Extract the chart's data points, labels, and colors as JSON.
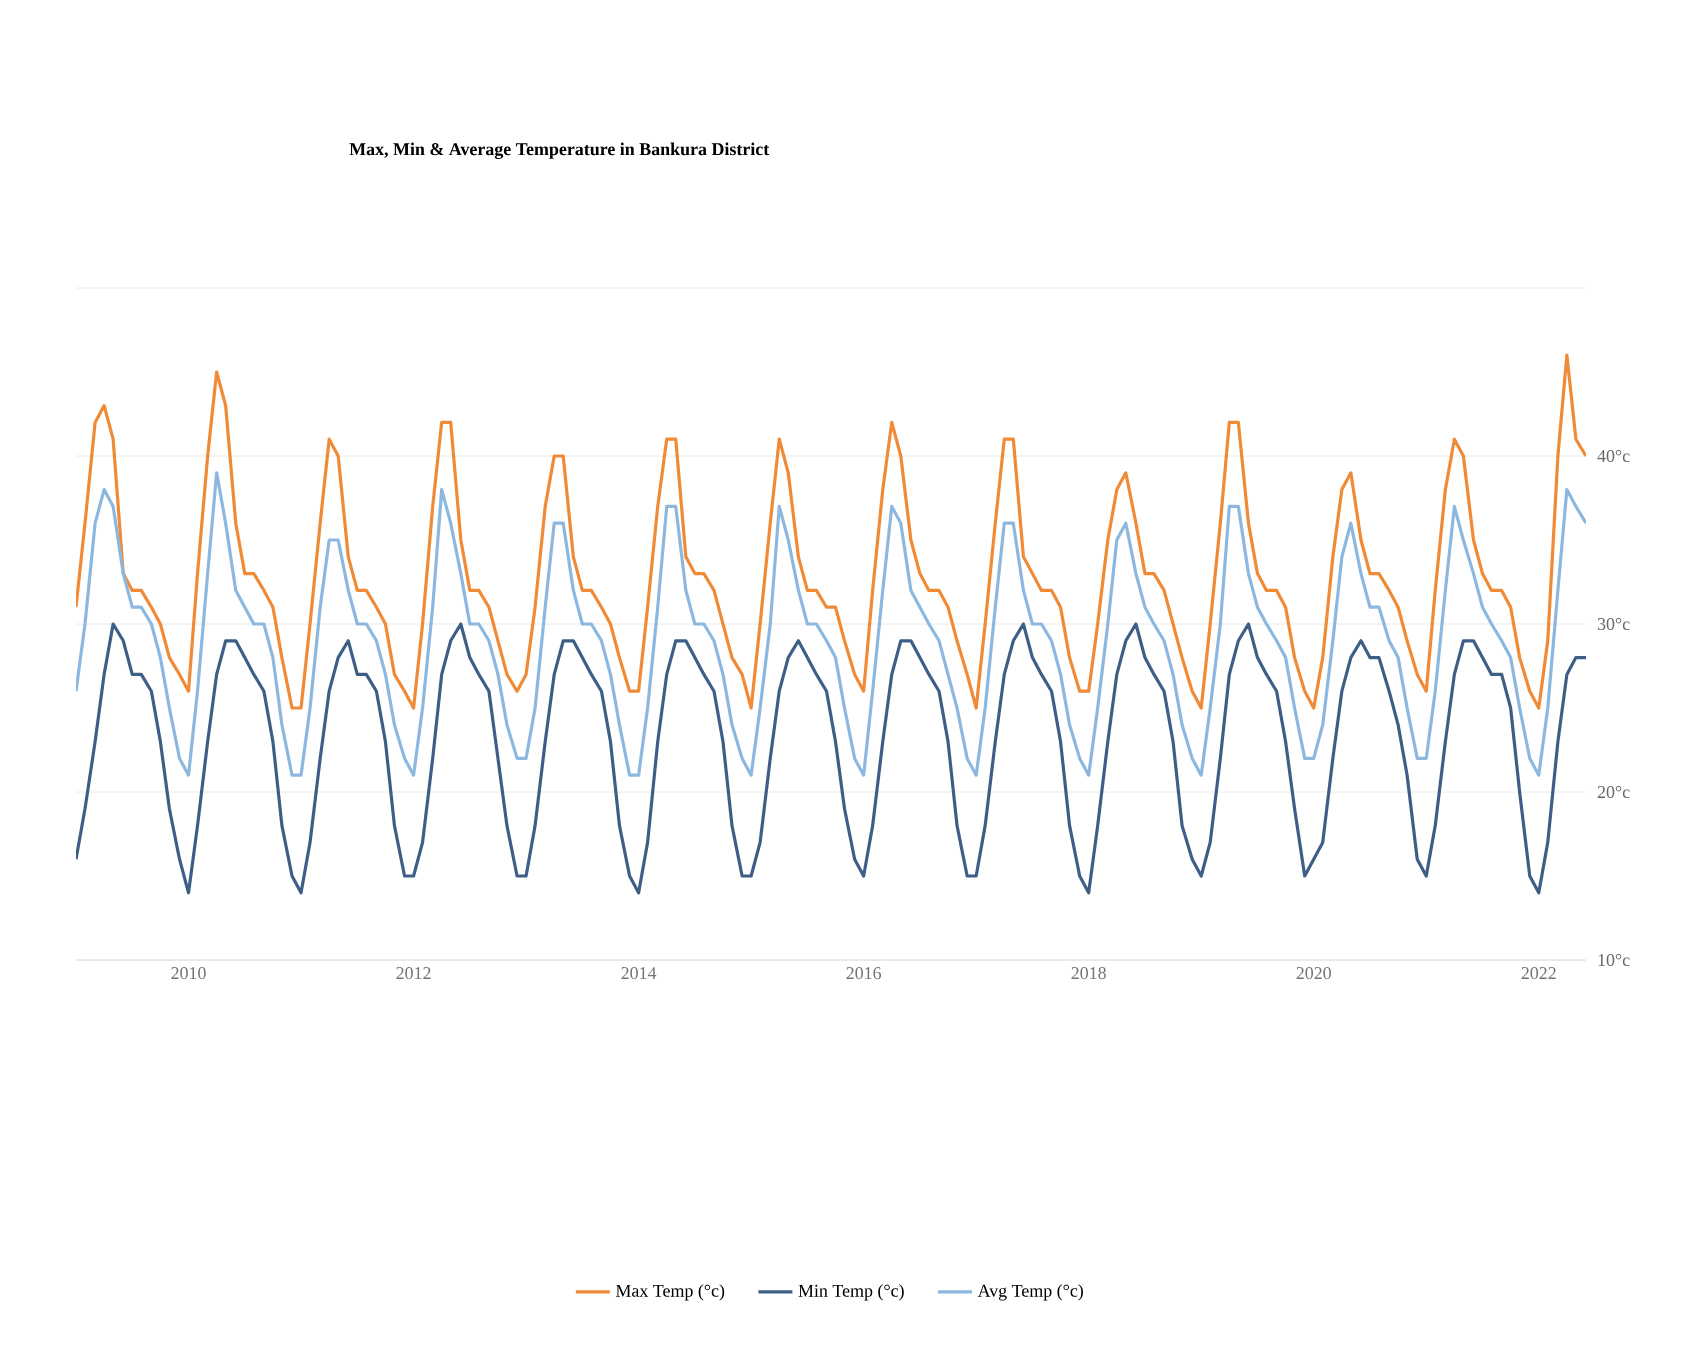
{
  "chart_data": {
    "type": "line",
    "title": "Max, Min & Average Temperature in Bankura District",
    "x": [
      "2009-01",
      "2009-02",
      "2009-03",
      "2009-04",
      "2009-05",
      "2009-06",
      "2009-07",
      "2009-08",
      "2009-09",
      "2009-10",
      "2009-11",
      "2009-12",
      "2010-01",
      "2010-02",
      "2010-03",
      "2010-04",
      "2010-05",
      "2010-06",
      "2010-07",
      "2010-08",
      "2010-09",
      "2010-10",
      "2010-11",
      "2010-12",
      "2011-01",
      "2011-02",
      "2011-03",
      "2011-04",
      "2011-05",
      "2011-06",
      "2011-07",
      "2011-08",
      "2011-09",
      "2011-10",
      "2011-11",
      "2011-12",
      "2012-01",
      "2012-02",
      "2012-03",
      "2012-04",
      "2012-05",
      "2012-06",
      "2012-07",
      "2012-08",
      "2012-09",
      "2012-10",
      "2012-11",
      "2012-12",
      "2013-01",
      "2013-02",
      "2013-03",
      "2013-04",
      "2013-05",
      "2013-06",
      "2013-07",
      "2013-08",
      "2013-09",
      "2013-10",
      "2013-11",
      "2013-12",
      "2014-01",
      "2014-02",
      "2014-03",
      "2014-04",
      "2014-05",
      "2014-06",
      "2014-07",
      "2014-08",
      "2014-09",
      "2014-10",
      "2014-11",
      "2014-12",
      "2015-01",
      "2015-02",
      "2015-03",
      "2015-04",
      "2015-05",
      "2015-06",
      "2015-07",
      "2015-08",
      "2015-09",
      "2015-10",
      "2015-11",
      "2015-12",
      "2016-01",
      "2016-02",
      "2016-03",
      "2016-04",
      "2016-05",
      "2016-06",
      "2016-07",
      "2016-08",
      "2016-09",
      "2016-10",
      "2016-11",
      "2016-12",
      "2017-01",
      "2017-02",
      "2017-03",
      "2017-04",
      "2017-05",
      "2017-06",
      "2017-07",
      "2017-08",
      "2017-09",
      "2017-10",
      "2017-11",
      "2017-12",
      "2018-01",
      "2018-02",
      "2018-03",
      "2018-04",
      "2018-05",
      "2018-06",
      "2018-07",
      "2018-08",
      "2018-09",
      "2018-10",
      "2018-11",
      "2018-12",
      "2019-01",
      "2019-02",
      "2019-03",
      "2019-04",
      "2019-05",
      "2019-06",
      "2019-07",
      "2019-08",
      "2019-09",
      "2019-10",
      "2019-11",
      "2019-12",
      "2020-01",
      "2020-02",
      "2020-03",
      "2020-04",
      "2020-05",
      "2020-06",
      "2020-07",
      "2020-08",
      "2020-09",
      "2020-10",
      "2020-11",
      "2020-12",
      "2021-01",
      "2021-02",
      "2021-03",
      "2021-04",
      "2021-05",
      "2021-06",
      "2021-07",
      "2021-08",
      "2021-09",
      "2021-10",
      "2021-11",
      "2021-12",
      "2022-01",
      "2022-02",
      "2022-03",
      "2022-04",
      "2022-05",
      "2022-06"
    ],
    "series": [
      {
        "name": "Max Temp (°c)",
        "color": "#f08a36",
        "values": [
          31,
          36,
          42,
          43,
          41,
          33,
          32,
          32,
          31,
          30,
          28,
          27,
          26,
          33,
          40,
          45,
          43,
          36,
          33,
          33,
          32,
          31,
          28,
          25,
          25,
          30,
          36,
          41,
          40,
          34,
          32,
          32,
          31,
          30,
          27,
          26,
          25,
          30,
          37,
          42,
          42,
          35,
          32,
          32,
          31,
          29,
          27,
          26,
          27,
          31,
          37,
          40,
          40,
          34,
          32,
          32,
          31,
          30,
          28,
          26,
          26,
          31,
          37,
          41,
          41,
          34,
          33,
          33,
          32,
          30,
          28,
          27,
          25,
          30,
          36,
          41,
          39,
          34,
          32,
          32,
          31,
          31,
          29,
          27,
          26,
          32,
          38,
          42,
          40,
          35,
          33,
          32,
          32,
          31,
          29,
          27,
          25,
          30,
          36,
          41,
          41,
          34,
          33,
          32,
          32,
          31,
          28,
          26,
          26,
          30,
          35,
          38,
          39,
          36,
          33,
          33,
          32,
          30,
          28,
          26,
          25,
          30,
          36,
          42,
          42,
          36,
          33,
          32,
          32,
          31,
          28,
          26,
          25,
          28,
          34,
          38,
          39,
          35,
          33,
          33,
          32,
          31,
          29,
          27,
          26,
          32,
          38,
          41,
          40,
          35,
          33,
          32,
          32,
          31,
          28,
          26,
          25,
          29,
          40,
          46,
          41,
          40
        ]
      },
      {
        "name": "Min Temp (°c)",
        "color": "#3d5f86",
        "values": [
          16,
          19,
          23,
          27,
          30,
          29,
          27,
          27,
          26,
          23,
          19,
          16,
          14,
          18,
          23,
          27,
          29,
          29,
          28,
          27,
          26,
          23,
          18,
          15,
          14,
          17,
          22,
          26,
          28,
          29,
          27,
          27,
          26,
          23,
          18,
          15,
          15,
          17,
          22,
          27,
          29,
          30,
          28,
          27,
          26,
          22,
          18,
          15,
          15,
          18,
          23,
          27,
          29,
          29,
          28,
          27,
          26,
          23,
          18,
          15,
          14,
          17,
          23,
          27,
          29,
          29,
          28,
          27,
          26,
          23,
          18,
          15,
          15,
          17,
          22,
          26,
          28,
          29,
          28,
          27,
          26,
          23,
          19,
          16,
          15,
          18,
          23,
          27,
          29,
          29,
          28,
          27,
          26,
          23,
          18,
          15,
          15,
          18,
          23,
          27,
          29,
          30,
          28,
          27,
          26,
          23,
          18,
          15,
          14,
          18,
          23,
          27,
          29,
          30,
          28,
          27,
          26,
          23,
          18,
          16,
          15,
          17,
          22,
          27,
          29,
          30,
          28,
          27,
          26,
          23,
          19,
          15,
          16,
          17,
          22,
          26,
          28,
          29,
          28,
          28,
          26,
          24,
          21,
          16,
          15,
          18,
          23,
          27,
          29,
          29,
          28,
          27,
          27,
          25,
          20,
          15,
          14,
          17,
          23,
          27,
          28,
          28
        ]
      },
      {
        "name": "Avg Temp (°c)",
        "color": "#8cb8e0",
        "values": [
          26,
          30,
          36,
          38,
          37,
          33,
          31,
          31,
          30,
          28,
          25,
          22,
          21,
          26,
          33,
          39,
          36,
          32,
          31,
          30,
          30,
          28,
          24,
          21,
          21,
          25,
          31,
          35,
          35,
          32,
          30,
          30,
          29,
          27,
          24,
          22,
          21,
          25,
          31,
          38,
          36,
          33,
          30,
          30,
          29,
          27,
          24,
          22,
          22,
          25,
          31,
          36,
          36,
          32,
          30,
          30,
          29,
          27,
          24,
          21,
          21,
          25,
          31,
          37,
          37,
          32,
          30,
          30,
          29,
          27,
          24,
          22,
          21,
          25,
          30,
          37,
          35,
          32,
          30,
          30,
          29,
          28,
          25,
          22,
          21,
          26,
          32,
          37,
          36,
          32,
          31,
          30,
          29,
          27,
          25,
          22,
          21,
          25,
          31,
          36,
          36,
          32,
          30,
          30,
          29,
          27,
          24,
          22,
          21,
          25,
          30,
          35,
          36,
          33,
          31,
          30,
          29,
          27,
          24,
          22,
          21,
          25,
          30,
          37,
          37,
          33,
          31,
          30,
          29,
          28,
          25,
          22,
          22,
          24,
          29,
          34,
          36,
          33,
          31,
          31,
          29,
          28,
          25,
          22,
          22,
          26,
          32,
          37,
          35,
          33,
          31,
          30,
          29,
          28,
          25,
          22,
          21,
          25,
          32,
          38,
          37,
          36
        ]
      }
    ],
    "xlim": [
      "2009-01",
      "2022-06"
    ],
    "xticks": [
      "2010",
      "2012",
      "2014",
      "2016",
      "2018",
      "2020",
      "2022"
    ],
    "ylim": [
      10,
      50
    ],
    "yticks": [
      {
        "value": 10,
        "label": "10°c"
      },
      {
        "value": 20,
        "label": "20°c"
      },
      {
        "value": 30,
        "label": "30°c"
      },
      {
        "value": 40,
        "label": "40°c"
      },
      {
        "value": 50,
        "label": null
      }
    ],
    "grid": "y",
    "legend": "bottom",
    "marker": "none",
    "line_style": "solid"
  }
}
